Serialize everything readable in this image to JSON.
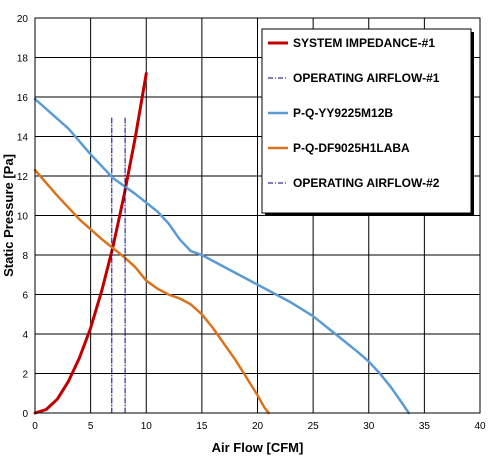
{
  "chart_data": {
    "type": "line",
    "title": "",
    "xlabel": "Air Flow [CFM]",
    "ylabel": "Static Pressure [Pa]",
    "xlim": [
      0,
      40
    ],
    "ylim": [
      0,
      20
    ],
    "x_ticks": [
      "0",
      "5",
      "10",
      "15",
      "20",
      "25",
      "30",
      "35",
      "40"
    ],
    "y_ticks": [
      "0",
      "2",
      "4",
      "6",
      "8",
      "10",
      "12",
      "14",
      "16",
      "18",
      "20"
    ],
    "grid": true,
    "legend_position": "top-right",
    "series": [
      {
        "name": "SYSTEM IMPEDANCE-#1",
        "color": "#c00000",
        "style": "solid",
        "points": [
          [
            0,
            0
          ],
          [
            1,
            0.17
          ],
          [
            2,
            0.7
          ],
          [
            3,
            1.6
          ],
          [
            4,
            2.8
          ],
          [
            5,
            4.3
          ],
          [
            6,
            6.2
          ],
          [
            7,
            8.4
          ],
          [
            8,
            11.0
          ],
          [
            9,
            13.9
          ],
          [
            10,
            17.2
          ]
        ]
      },
      {
        "name": "OPERATING AIRFLOW-#1",
        "color": "#000080",
        "style": "dashdot",
        "points": [
          [
            6.9,
            0
          ],
          [
            6.9,
            15
          ]
        ]
      },
      {
        "name": "P-Q-YY9225M12B",
        "color": "#5b9bd5",
        "style": "solid",
        "points": [
          [
            0,
            15.9
          ],
          [
            3,
            14.4
          ],
          [
            5,
            13.1
          ],
          [
            7,
            11.9
          ],
          [
            9,
            11.1
          ],
          [
            11,
            10.2
          ],
          [
            12,
            9.6
          ],
          [
            13,
            8.8
          ],
          [
            14,
            8.2
          ],
          [
            15,
            8.0
          ],
          [
            17,
            7.4
          ],
          [
            20,
            6.5
          ],
          [
            23,
            5.6
          ],
          [
            25,
            4.9
          ],
          [
            27,
            4.0
          ],
          [
            29,
            3.1
          ],
          [
            30,
            2.6
          ],
          [
            31,
            2.0
          ],
          [
            32,
            1.3
          ],
          [
            33,
            0.5
          ],
          [
            33.6,
            0
          ]
        ]
      },
      {
        "name": "P-Q-DF9025H1LABA",
        "color": "#d9731e",
        "style": "solid",
        "points": [
          [
            0,
            12.3
          ],
          [
            2,
            11.0
          ],
          [
            4,
            9.8
          ],
          [
            6,
            8.8
          ],
          [
            8,
            7.9
          ],
          [
            9,
            7.4
          ],
          [
            10,
            6.7
          ],
          [
            11,
            6.3
          ],
          [
            12,
            6.0
          ],
          [
            13,
            5.8
          ],
          [
            14,
            5.5
          ],
          [
            15,
            5.0
          ],
          [
            16,
            4.3
          ],
          [
            17,
            3.5
          ],
          [
            18,
            2.7
          ],
          [
            19,
            1.8
          ],
          [
            20,
            0.9
          ],
          [
            20.6,
            0.3
          ],
          [
            21,
            0
          ]
        ]
      },
      {
        "name": "OPERATING AIRFLOW-#2",
        "color": "#000080",
        "style": "dashdot",
        "points": [
          [
            8.1,
            0
          ],
          [
            8.1,
            15
          ]
        ]
      }
    ]
  }
}
